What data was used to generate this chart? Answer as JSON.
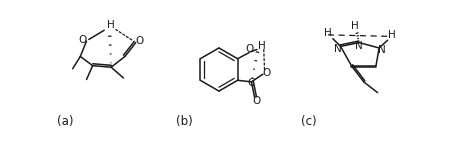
{
  "bg_color": "#ffffff",
  "label_a": "(a)",
  "label_b": "(b)",
  "label_c": "(c)",
  "line_color": "#1a1a1a",
  "line_width": 1.1,
  "font_size_label": 8.5,
  "font_size_atom": 7.5
}
